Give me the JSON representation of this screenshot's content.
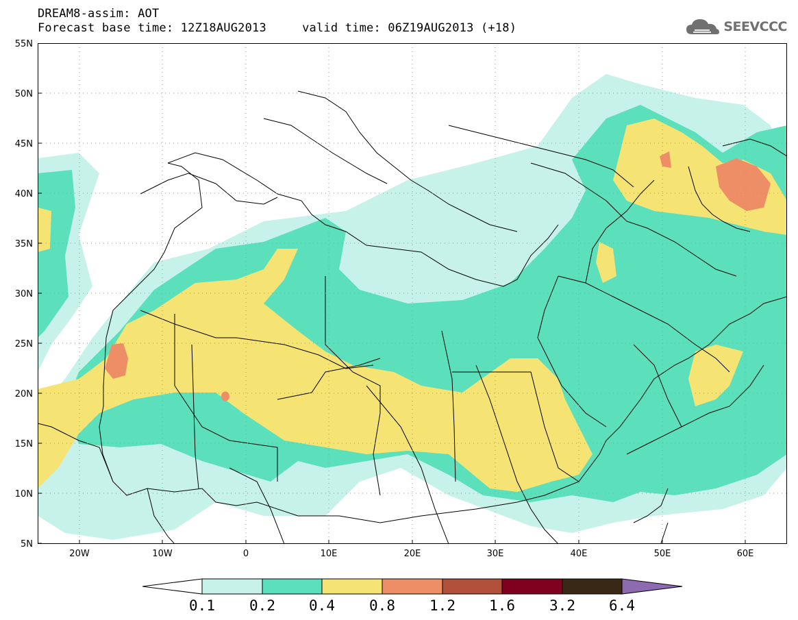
{
  "title": {
    "line1": "DREAM8-assim: AOT",
    "line2": "Forecast base time: 12Z18AUG2013     valid time: 06Z19AUG2013 (+18)"
  },
  "logo": {
    "text": "SEEVCCC",
    "icon": "cloud-icon",
    "color": "#707070"
  },
  "map": {
    "lon_range": [
      -25,
      65
    ],
    "lat_range": [
      5,
      55
    ],
    "grid": true,
    "lat_labels": [
      "55N",
      "50N",
      "45N",
      "40N",
      "35N",
      "30N",
      "25N",
      "20N",
      "15N",
      "10N",
      "5N"
    ],
    "lon_labels": [
      "20W",
      "10W",
      "0",
      "10E",
      "20E",
      "30E",
      "40E",
      "50E",
      "60E"
    ]
  },
  "colorbar": {
    "levels": [
      "0.1",
      "0.2",
      "0.4",
      "0.8",
      "1.2",
      "1.6",
      "3.2",
      "6.4"
    ],
    "colors": [
      "#c7f2ea",
      "#5ce0bc",
      "#f5e373",
      "#ee8e66",
      "#b1513b",
      "#800020",
      "#3a2816",
      "#8e6ab0"
    ],
    "under_color": "#ffffff"
  }
}
